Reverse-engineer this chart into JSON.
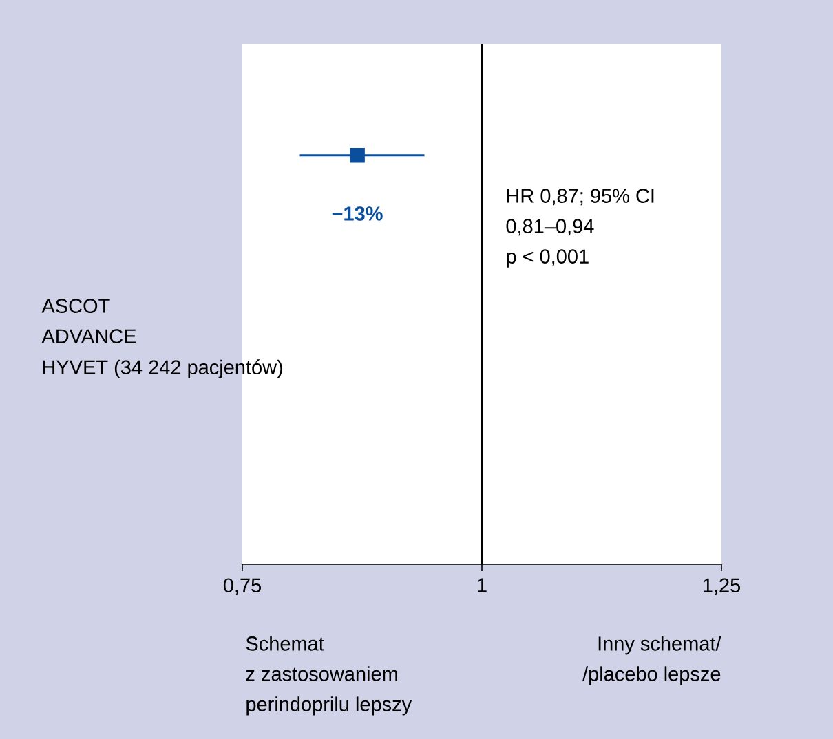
{
  "chart_data": {
    "type": "scatter",
    "orientation": "horizontal",
    "marker": "square",
    "categories": [
      null
    ],
    "series": [
      {
        "color": "#0b4f9c",
        "values": [
          0.87
        ],
        "errors": [
          [
            0.81,
            0.94
          ]
        ]
      }
    ],
    "xlim": [
      0.75,
      1.25
    ],
    "xticks": [
      {
        "value": 0.75,
        "label": "0,75"
      },
      {
        "value": 1,
        "label": "1"
      },
      {
        "value": 1.25,
        "label": "1,25"
      }
    ],
    "ref_lines": [
      {
        "axis": "x",
        "value": 1,
        "color": "#000000"
      }
    ],
    "tick_labels": "x",
    "annotations": [
      "−13%",
      "HR 0,87; 95% CI",
      "0,81–0,94",
      "p < 0,001",
      "ASCOT",
      "ADVANCE",
      "HYVET (34 242 pacjentów)",
      "Schemat",
      "z zastosowaniem",
      "perindoprilu lepszy",
      "Inny schemat/",
      "/placebo lepsze"
    ]
  }
}
